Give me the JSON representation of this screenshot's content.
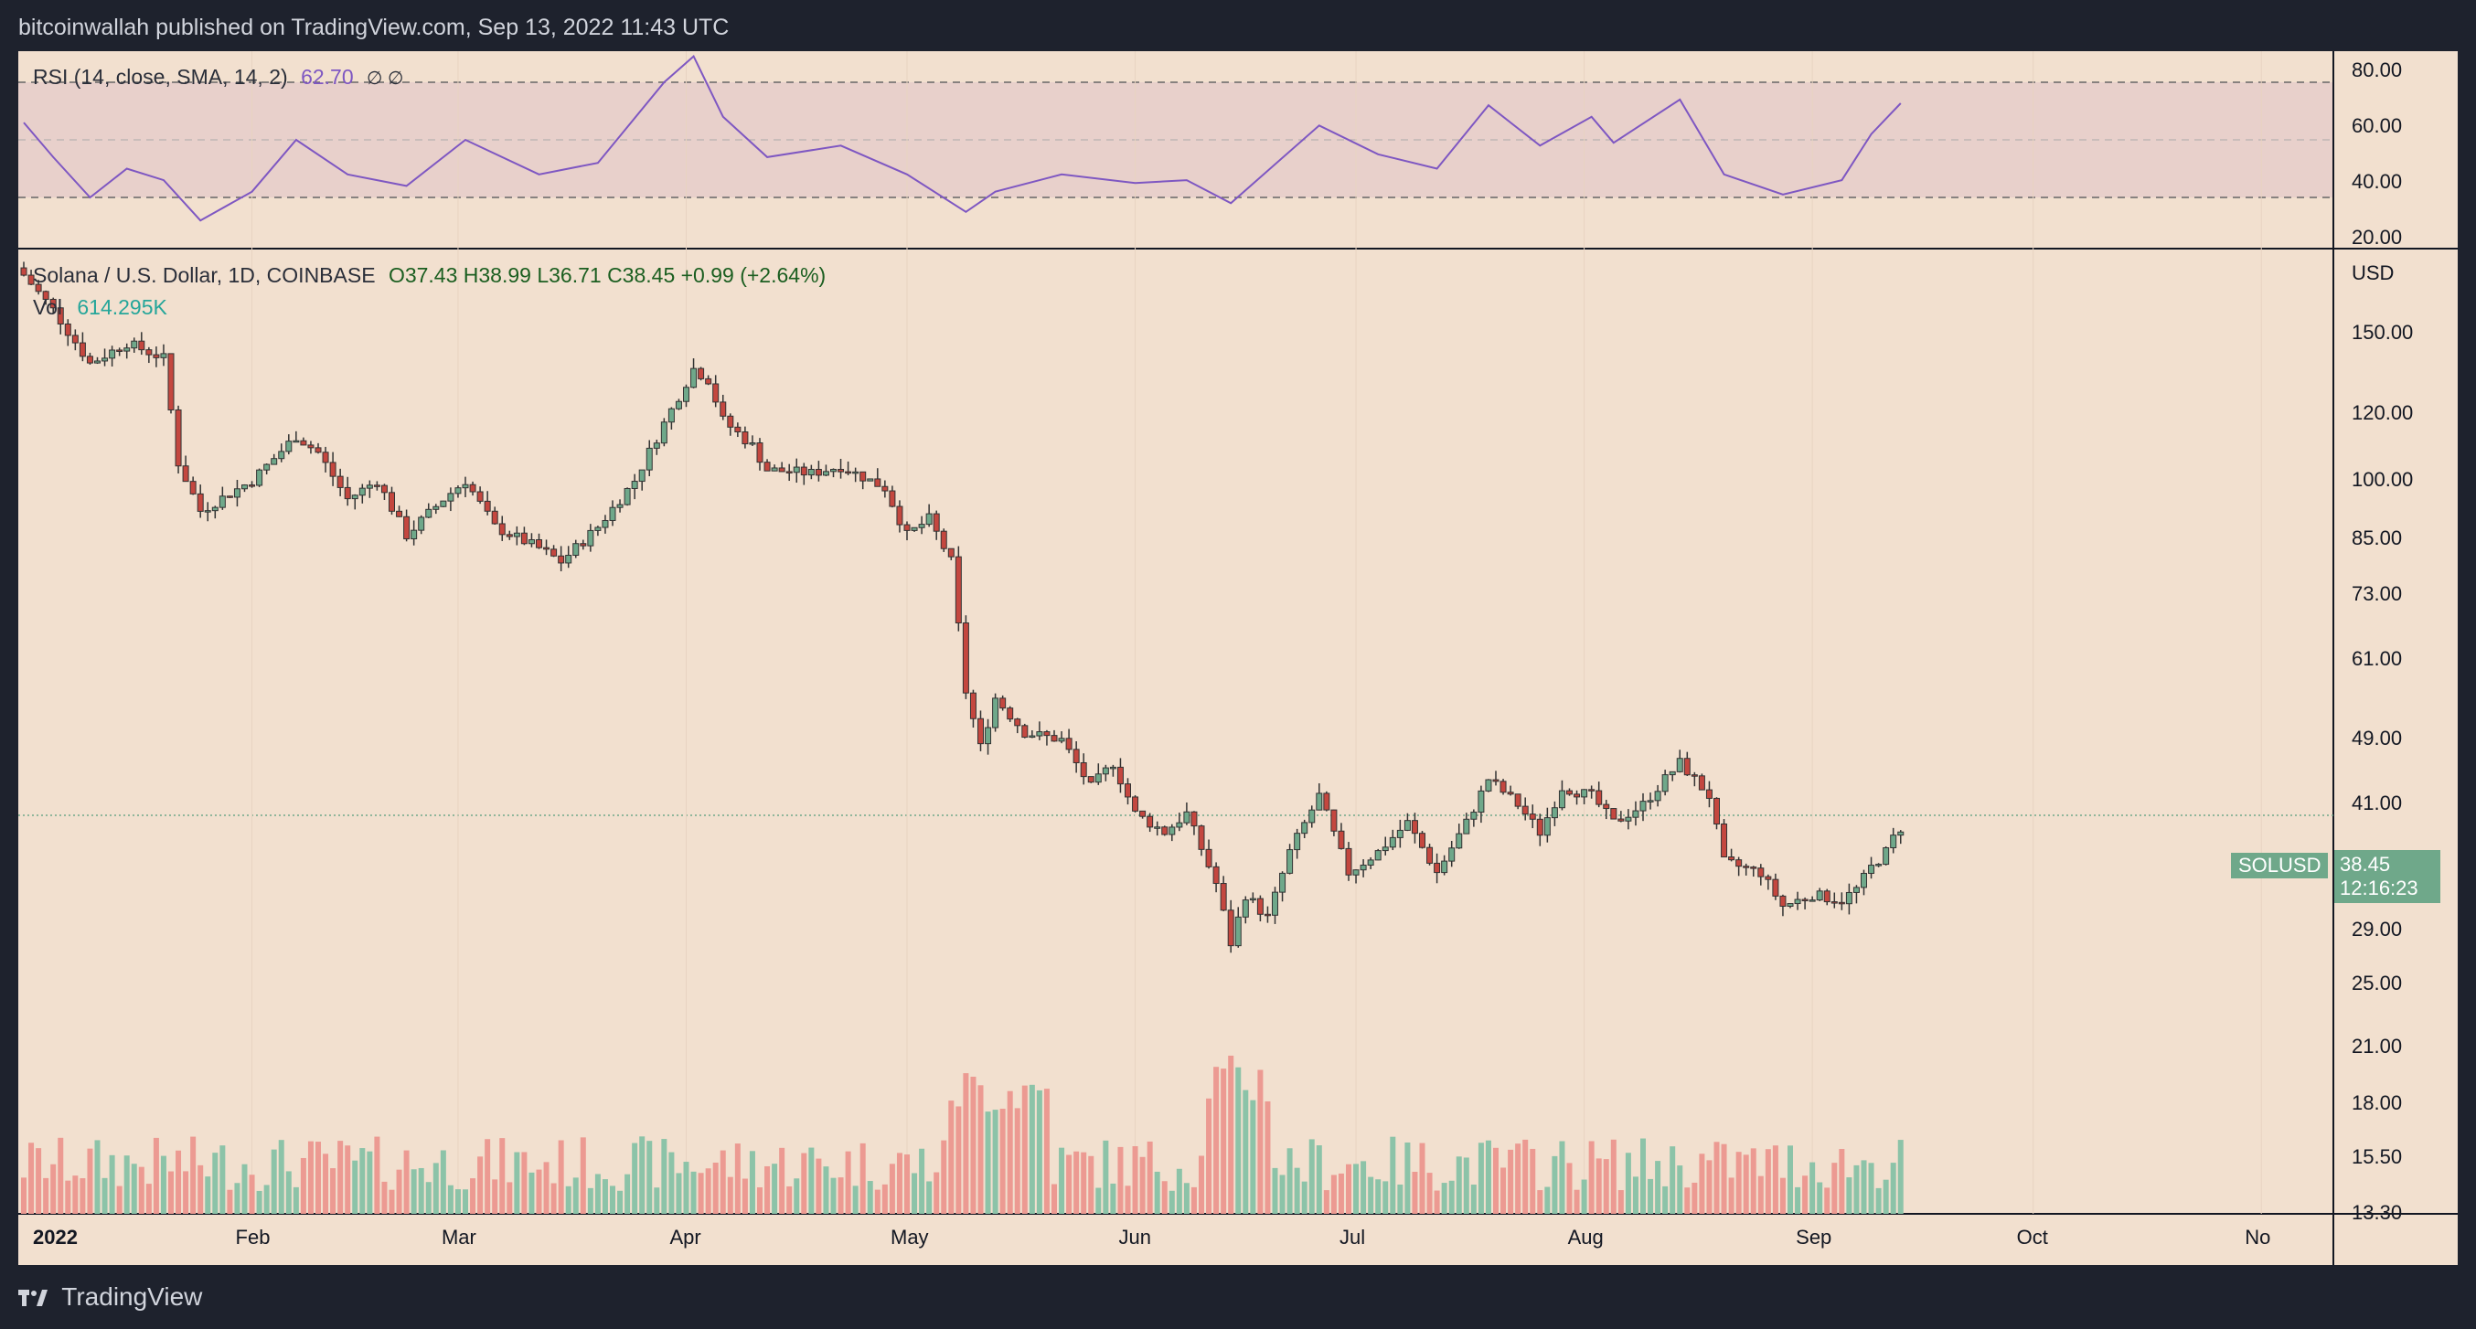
{
  "header": {
    "publisher_line": "bitcoinwallah published on TradingView.com, Sep 13, 2022 11:43 UTC"
  },
  "footer": {
    "brand": "TradingView"
  },
  "rsi": {
    "legend_text": "RSI (14, close, SMA, 14, 2)",
    "value_text": "62.70",
    "extra_glyphs": "∅  ∅",
    "axis_ticks": [
      "80.00",
      "60.00",
      "40.00",
      "20.00"
    ],
    "color": "#7e57c2"
  },
  "main": {
    "legend_symbol": "Solana / U.S. Dollar, 1D, COINBASE",
    "legend_ohlc": "O37.43  H38.99  L36.71  C38.45  +0.99 (+2.64%)",
    "volume_label": "Vol",
    "volume_value": "614.295K",
    "currency": "USD",
    "price_ticks": [
      "150.00",
      "120.00",
      "100.00",
      "85.00",
      "73.00",
      "61.00",
      "49.00",
      "41.00",
      "29.00",
      "25.00",
      "21.00",
      "18.00",
      "15.50",
      "13.30"
    ],
    "price_tag_value": "38.45",
    "price_tag_timer": "12:16:23",
    "symbol_tag": "SOLUSD",
    "time_axis": [
      "2022",
      "Feb",
      "Mar",
      "Apr",
      "May",
      "Jun",
      "Jul",
      "Aug",
      "Sep",
      "Oct",
      "No"
    ],
    "up_color": "#6fa88a",
    "down_color": "#c4473f"
  },
  "chart_data": {
    "type": "candlestick",
    "scale": "log",
    "xlabel": "",
    "ylabel": "",
    "ylim": [
      13.3,
      160
    ],
    "close_price_series": [
      {
        "date": "2022-01-01",
        "close": 176
      },
      {
        "date": "2022-01-05",
        "close": 160
      },
      {
        "date": "2022-01-10",
        "close": 138
      },
      {
        "date": "2022-01-15",
        "close": 146
      },
      {
        "date": "2022-01-20",
        "close": 140
      },
      {
        "date": "2022-01-22",
        "close": 105
      },
      {
        "date": "2022-01-25",
        "close": 92
      },
      {
        "date": "2022-02-01",
        "close": 100
      },
      {
        "date": "2022-02-07",
        "close": 113
      },
      {
        "date": "2022-02-10",
        "close": 108
      },
      {
        "date": "2022-02-14",
        "close": 95
      },
      {
        "date": "2022-02-18",
        "close": 100
      },
      {
        "date": "2022-02-22",
        "close": 86
      },
      {
        "date": "2022-02-27",
        "close": 95
      },
      {
        "date": "2022-03-02",
        "close": 100
      },
      {
        "date": "2022-03-06",
        "close": 88
      },
      {
        "date": "2022-03-12",
        "close": 83
      },
      {
        "date": "2022-03-15",
        "close": 80
      },
      {
        "date": "2022-03-20",
        "close": 88
      },
      {
        "date": "2022-03-25",
        "close": 100
      },
      {
        "date": "2022-03-29",
        "close": 117
      },
      {
        "date": "2022-04-02",
        "close": 136
      },
      {
        "date": "2022-04-04",
        "close": 132
      },
      {
        "date": "2022-04-06",
        "close": 118
      },
      {
        "date": "2022-04-10",
        "close": 110
      },
      {
        "date": "2022-04-12",
        "close": 103
      },
      {
        "date": "2022-04-18",
        "close": 102
      },
      {
        "date": "2022-04-22",
        "close": 104
      },
      {
        "date": "2022-04-25",
        "close": 101
      },
      {
        "date": "2022-04-28",
        "close": 98
      },
      {
        "date": "2022-05-01",
        "close": 86
      },
      {
        "date": "2022-05-04",
        "close": 90
      },
      {
        "date": "2022-05-07",
        "close": 80
      },
      {
        "date": "2022-05-09",
        "close": 56
      },
      {
        "date": "2022-05-11",
        "close": 48
      },
      {
        "date": "2022-05-13",
        "close": 55
      },
      {
        "date": "2022-05-17",
        "close": 50
      },
      {
        "date": "2022-05-22",
        "close": 49
      },
      {
        "date": "2022-05-26",
        "close": 43
      },
      {
        "date": "2022-05-29",
        "close": 46
      },
      {
        "date": "2022-06-01",
        "close": 40
      },
      {
        "date": "2022-06-05",
        "close": 38
      },
      {
        "date": "2022-06-08",
        "close": 40
      },
      {
        "date": "2022-06-12",
        "close": 33
      },
      {
        "date": "2022-06-14",
        "close": 28
      },
      {
        "date": "2022-06-16",
        "close": 32
      },
      {
        "date": "2022-06-19",
        "close": 30
      },
      {
        "date": "2022-06-22",
        "close": 36
      },
      {
        "date": "2022-06-26",
        "close": 42
      },
      {
        "date": "2022-06-30",
        "close": 34
      },
      {
        "date": "2022-07-04",
        "close": 36
      },
      {
        "date": "2022-07-08",
        "close": 39
      },
      {
        "date": "2022-07-12",
        "close": 34
      },
      {
        "date": "2022-07-16",
        "close": 39
      },
      {
        "date": "2022-07-19",
        "close": 44
      },
      {
        "date": "2022-07-23",
        "close": 41
      },
      {
        "date": "2022-07-26",
        "close": 38
      },
      {
        "date": "2022-07-29",
        "close": 43
      },
      {
        "date": "2022-08-02",
        "close": 42
      },
      {
        "date": "2022-08-05",
        "close": 39
      },
      {
        "date": "2022-08-09",
        "close": 41
      },
      {
        "date": "2022-08-12",
        "close": 44
      },
      {
        "date": "2022-08-14",
        "close": 46
      },
      {
        "date": "2022-08-18",
        "close": 42
      },
      {
        "date": "2022-08-20",
        "close": 35
      },
      {
        "date": "2022-08-25",
        "close": 34
      },
      {
        "date": "2022-08-28",
        "close": 31
      },
      {
        "date": "2022-09-01",
        "close": 32
      },
      {
        "date": "2022-09-05",
        "close": 31.5
      },
      {
        "date": "2022-09-07",
        "close": 32.5
      },
      {
        "date": "2022-09-09",
        "close": 34.5
      },
      {
        "date": "2022-09-11",
        "close": 36
      },
      {
        "date": "2022-09-12",
        "close": 37.4
      },
      {
        "date": "2022-09-13",
        "close": 38.45
      }
    ],
    "rsi_series": [
      {
        "date": "2022-01-01",
        "rsi": 56
      },
      {
        "date": "2022-01-05",
        "rsi": 44
      },
      {
        "date": "2022-01-10",
        "rsi": 30
      },
      {
        "date": "2022-01-15",
        "rsi": 40
      },
      {
        "date": "2022-01-20",
        "rsi": 36
      },
      {
        "date": "2022-01-25",
        "rsi": 22
      },
      {
        "date": "2022-02-01",
        "rsi": 32
      },
      {
        "date": "2022-02-07",
        "rsi": 50
      },
      {
        "date": "2022-02-14",
        "rsi": 38
      },
      {
        "date": "2022-02-22",
        "rsi": 34
      },
      {
        "date": "2022-03-02",
        "rsi": 50
      },
      {
        "date": "2022-03-12",
        "rsi": 38
      },
      {
        "date": "2022-03-20",
        "rsi": 42
      },
      {
        "date": "2022-03-29",
        "rsi": 70
      },
      {
        "date": "2022-04-02",
        "rsi": 79
      },
      {
        "date": "2022-04-06",
        "rsi": 58
      },
      {
        "date": "2022-04-12",
        "rsi": 44
      },
      {
        "date": "2022-04-22",
        "rsi": 48
      },
      {
        "date": "2022-05-01",
        "rsi": 38
      },
      {
        "date": "2022-05-09",
        "rsi": 25
      },
      {
        "date": "2022-05-13",
        "rsi": 32
      },
      {
        "date": "2022-05-22",
        "rsi": 38
      },
      {
        "date": "2022-06-01",
        "rsi": 35
      },
      {
        "date": "2022-06-08",
        "rsi": 36
      },
      {
        "date": "2022-06-14",
        "rsi": 28
      },
      {
        "date": "2022-06-26",
        "rsi": 55
      },
      {
        "date": "2022-07-04",
        "rsi": 45
      },
      {
        "date": "2022-07-12",
        "rsi": 40
      },
      {
        "date": "2022-07-19",
        "rsi": 62
      },
      {
        "date": "2022-07-26",
        "rsi": 48
      },
      {
        "date": "2022-08-02",
        "rsi": 58
      },
      {
        "date": "2022-08-05",
        "rsi": 49
      },
      {
        "date": "2022-08-14",
        "rsi": 64
      },
      {
        "date": "2022-08-20",
        "rsi": 38
      },
      {
        "date": "2022-08-28",
        "rsi": 31
      },
      {
        "date": "2022-09-05",
        "rsi": 36
      },
      {
        "date": "2022-09-09",
        "rsi": 52
      },
      {
        "date": "2022-09-13",
        "rsi": 62.7
      }
    ],
    "volume_note": "volume in units of base asset; last bar 614.295K"
  }
}
